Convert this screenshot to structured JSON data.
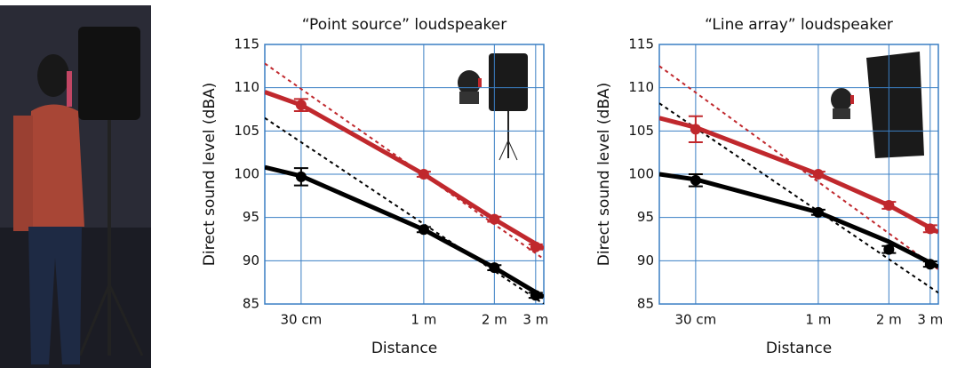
{
  "chart_data": [
    {
      "type": "line",
      "title": "“Point source” loudspeaker",
      "xlabel": "Distance",
      "ylabel": "Direct sound level (dBA)",
      "xscale": "log",
      "xlim": [
        0.21,
        3.25
      ],
      "xticks": [
        {
          "value": 0.3,
          "label": "30 cm"
        },
        {
          "value": 1,
          "label": "1 m"
        },
        {
          "value": 2,
          "label": "2 m"
        },
        {
          "value": 3,
          "label": "3 m"
        }
      ],
      "ylim": [
        85,
        115
      ],
      "yticks": [
        85,
        90,
        95,
        100,
        105,
        110,
        115
      ],
      "grid": true,
      "series": [
        {
          "color": "#c0282d",
          "style": "dashed",
          "x": [
            0.21,
            3.25
          ],
          "values": [
            112.8,
            90.2
          ]
        },
        {
          "color": "#000000",
          "style": "dashed",
          "x": [
            0.21,
            3.25
          ],
          "values": [
            106.5,
            85
          ]
        },
        {
          "color": "#c0282d",
          "style": "solid",
          "x": [
            0.21,
            0.3,
            1,
            2,
            3.25
          ],
          "values": [
            109.5,
            108,
            100,
            94.8,
            91.4
          ]
        },
        {
          "color": "#000000",
          "style": "solid",
          "x": [
            0.21,
            0.3,
            1,
            2,
            3.25
          ],
          "values": [
            100.8,
            99.8,
            93.6,
            89.2,
            85.8
          ]
        },
        {
          "color": "#c0282d",
          "style": "markers",
          "x": [
            0.3,
            1,
            2,
            3
          ],
          "values": [
            108,
            100,
            94.8,
            91.6
          ],
          "errors": [
            0.7,
            0.3,
            0.3,
            0.3
          ]
        },
        {
          "color": "#000000",
          "style": "markers",
          "x": [
            0.3,
            1,
            2,
            3
          ],
          "values": [
            99.7,
            93.6,
            89.2,
            86
          ],
          "errors": [
            1,
            0.3,
            0.3,
            0.3
          ]
        }
      ]
    },
    {
      "type": "line",
      "title": "“Line array” loudspeaker",
      "xlabel": "Distance",
      "ylabel": "Direct sound level (dBA)",
      "xscale": "log",
      "xlim": [
        0.21,
        3.25
      ],
      "xticks": [
        {
          "value": 0.3,
          "label": "30 cm"
        },
        {
          "value": 1,
          "label": "1 m"
        },
        {
          "value": 2,
          "label": "2 m"
        },
        {
          "value": 3,
          "label": "3 m"
        }
      ],
      "ylim": [
        85,
        115
      ],
      "yticks": [
        85,
        90,
        95,
        100,
        105,
        110,
        115
      ],
      "grid": true,
      "series": [
        {
          "color": "#c0282d",
          "style": "dashed",
          "x": [
            0.21,
            3.25
          ],
          "values": [
            112.5,
            89
          ]
        },
        {
          "color": "#000000",
          "style": "dashed",
          "x": [
            0.21,
            3.25
          ],
          "values": [
            108.2,
            86.3
          ]
        },
        {
          "color": "#c0282d",
          "style": "solid",
          "x": [
            0.21,
            0.3,
            1,
            2,
            3.25
          ],
          "values": [
            106.5,
            105.4,
            100,
            96.4,
            93.3
          ]
        },
        {
          "color": "#000000",
          "style": "solid",
          "x": [
            0.21,
            0.3,
            1,
            2,
            3.25
          ],
          "values": [
            100,
            99.4,
            95.6,
            92.2,
            89.3
          ]
        },
        {
          "color": "#c0282d",
          "style": "markers",
          "x": [
            0.3,
            1,
            2,
            3
          ],
          "values": [
            105.2,
            100,
            96.4,
            93.7
          ],
          "errors": [
            1.5,
            0.3,
            0.4,
            0.4
          ]
        },
        {
          "color": "#000000",
          "style": "markers",
          "x": [
            0.3,
            1,
            2,
            3
          ],
          "values": [
            99.3,
            95.6,
            91.3,
            89.6
          ],
          "errors": [
            0.7,
            0.3,
            0.4,
            0.3
          ]
        }
      ]
    }
  ]
}
